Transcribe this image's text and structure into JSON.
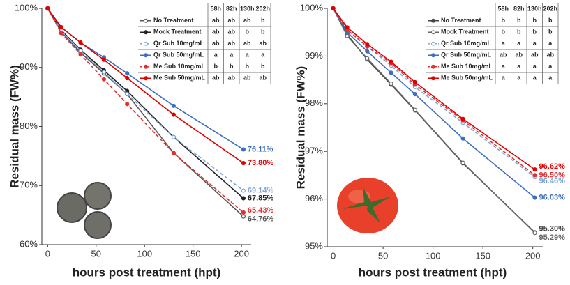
{
  "chart_data": [
    {
      "type": "line",
      "x_label": "hours post treatment (hpt)",
      "y_label": "Residual mass (FW%)",
      "x": [
        0,
        14,
        34,
        58,
        82,
        130,
        202
      ],
      "xlim": [
        -6,
        210
      ],
      "xticks": [
        0,
        50,
        100,
        150,
        200
      ],
      "ylim": [
        60,
        100
      ],
      "yticks": [
        {
          "value": 60,
          "label": "60%"
        },
        {
          "value": 70,
          "label": "70%"
        },
        {
          "value": 80,
          "label": "80%"
        },
        {
          "value": 90,
          "label": "90%"
        },
        {
          "value": 100,
          "label": "100%"
        }
      ],
      "legend_header": [
        "58h",
        "82h",
        "130h",
        "202h"
      ],
      "series": [
        {
          "name": "No Treatment",
          "color": "#555555",
          "marker": "open",
          "dashed": false,
          "values": [
            100,
            96.0,
            92.5,
            89.0,
            85.5,
            75.5,
            64.76
          ],
          "value_labels": [
            null,
            null,
            null,
            null,
            null,
            null,
            "64.76%"
          ],
          "letters": [
            "ab",
            "ab",
            "ab",
            "b"
          ]
        },
        {
          "name": "Mock Treatment",
          "color": "#222222",
          "marker": "filled",
          "dashed": false,
          "values": [
            100,
            96.3,
            93.0,
            89.5,
            86.0,
            78.2,
            67.85
          ],
          "value_labels": [
            null,
            null,
            null,
            null,
            null,
            null,
            "67.85%"
          ],
          "letters": [
            "ab",
            "ab",
            "b",
            "b"
          ]
        },
        {
          "name": "Qr Sub 10mg/mL",
          "color": "#7ea6d8",
          "marker": "open",
          "dashed": true,
          "values": [
            100,
            96.2,
            92.8,
            89.2,
            85.5,
            78.2,
            69.14
          ],
          "value_labels": [
            null,
            null,
            null,
            null,
            null,
            null,
            "69.14%"
          ],
          "letters": [
            "ab",
            "ab",
            "ab",
            "ab"
          ]
        },
        {
          "name": "Qr Sub 50mg/mL",
          "color": "#3d6fc0",
          "marker": "filled",
          "dashed": false,
          "values": [
            100,
            96.8,
            94.2,
            91.7,
            89.0,
            83.5,
            76.11
          ],
          "value_labels": [
            null,
            null,
            null,
            null,
            null,
            null,
            "76.11%"
          ],
          "letters": [
            "a",
            "a",
            "a",
            "a"
          ]
        },
        {
          "name": "Me Sub 10mg/mL",
          "color": "#e03030",
          "marker": "filled",
          "dashed": true,
          "values": [
            100,
            95.8,
            92.2,
            88.0,
            83.8,
            75.5,
            65.43
          ],
          "value_labels": [
            null,
            null,
            null,
            null,
            null,
            null,
            "65.43%"
          ],
          "letters": [
            "b",
            "b",
            "b",
            "b"
          ]
        },
        {
          "name": "Me Sub 50mg/mL",
          "color": "#e00000",
          "marker": "filled",
          "dashed": false,
          "values": [
            100,
            96.8,
            94.2,
            91.3,
            88.2,
            82.0,
            73.8
          ],
          "value_labels": [
            null,
            null,
            null,
            null,
            null,
            null,
            "73.80%"
          ],
          "letters": [
            "ab",
            "ab",
            "ab",
            "ab"
          ]
        }
      ]
    },
    {
      "type": "line",
      "x_label": "hours post treatment (hpt)",
      "y_label": "Residual mass (FW%)",
      "x": [
        0,
        14,
        34,
        58,
        82,
        130,
        202
      ],
      "xlim": [
        -6,
        210
      ],
      "xticks": [
        0,
        50,
        100,
        150,
        200
      ],
      "ylim": [
        95,
        100
      ],
      "yticks": [
        {
          "value": 95,
          "label": "95%"
        },
        {
          "value": 96,
          "label": "96%"
        },
        {
          "value": 97,
          "label": "97%"
        },
        {
          "value": 98,
          "label": "98%"
        },
        {
          "value": 99,
          "label": "99%"
        },
        {
          "value": 100,
          "label": "100%"
        }
      ],
      "legend_header": [
        "58h",
        "82h",
        "130h",
        "202h"
      ],
      "series": [
        {
          "name": "No Treatment",
          "color": "#444444",
          "marker": "filled",
          "dashed": false,
          "values": [
            100,
            99.45,
            98.93,
            98.4,
            97.86,
            96.75,
            95.3
          ],
          "value_labels": [
            null,
            null,
            null,
            null,
            null,
            null,
            "95.30%"
          ],
          "letters": [
            "b",
            "b",
            "b",
            "b"
          ]
        },
        {
          "name": "Mock Treatment",
          "color": "#666666",
          "marker": "open",
          "dashed": false,
          "values": [
            100,
            99.42,
            98.95,
            98.42,
            97.87,
            96.76,
            95.29
          ],
          "value_labels": [
            null,
            null,
            null,
            null,
            null,
            null,
            "95.29%"
          ],
          "letters": [
            "b",
            "b",
            "b",
            "b"
          ]
        },
        {
          "name": "Qr Sub 10mg/mL",
          "color": "#7ea6d8",
          "marker": "open",
          "dashed": true,
          "values": [
            100,
            99.55,
            99.2,
            98.8,
            98.35,
            97.6,
            96.46
          ],
          "value_labels": [
            null,
            null,
            null,
            null,
            null,
            null,
            "96.46%"
          ],
          "letters": [
            "a",
            "a",
            "a",
            "a"
          ]
        },
        {
          "name": "Qr Sub 50mg/mL",
          "color": "#3d6fc0",
          "marker": "filled",
          "dashed": false,
          "values": [
            100,
            99.5,
            99.1,
            98.65,
            98.2,
            97.27,
            96.03
          ],
          "value_labels": [
            null,
            null,
            null,
            null,
            null,
            null,
            "96.03%"
          ],
          "letters": [
            "ab",
            "ab",
            "ab",
            "ab"
          ]
        },
        {
          "name": "Me Sub 10mg/mL",
          "color": "#e03030",
          "marker": "filled",
          "dashed": true,
          "values": [
            100,
            99.55,
            99.2,
            98.85,
            98.4,
            97.65,
            96.5
          ],
          "value_labels": [
            null,
            null,
            null,
            null,
            null,
            null,
            "96.50%"
          ],
          "letters": [
            "a",
            "a",
            "a",
            "a"
          ]
        },
        {
          "name": "Me Sub 50mg/mL",
          "color": "#e00000",
          "marker": "filled",
          "dashed": false,
          "values": [
            100,
            99.6,
            99.25,
            98.88,
            98.45,
            97.68,
            96.62
          ],
          "value_labels": [
            null,
            null,
            null,
            null,
            null,
            null,
            "96.62%"
          ],
          "letters": [
            "a",
            "a",
            "a",
            "a"
          ]
        }
      ]
    }
  ]
}
